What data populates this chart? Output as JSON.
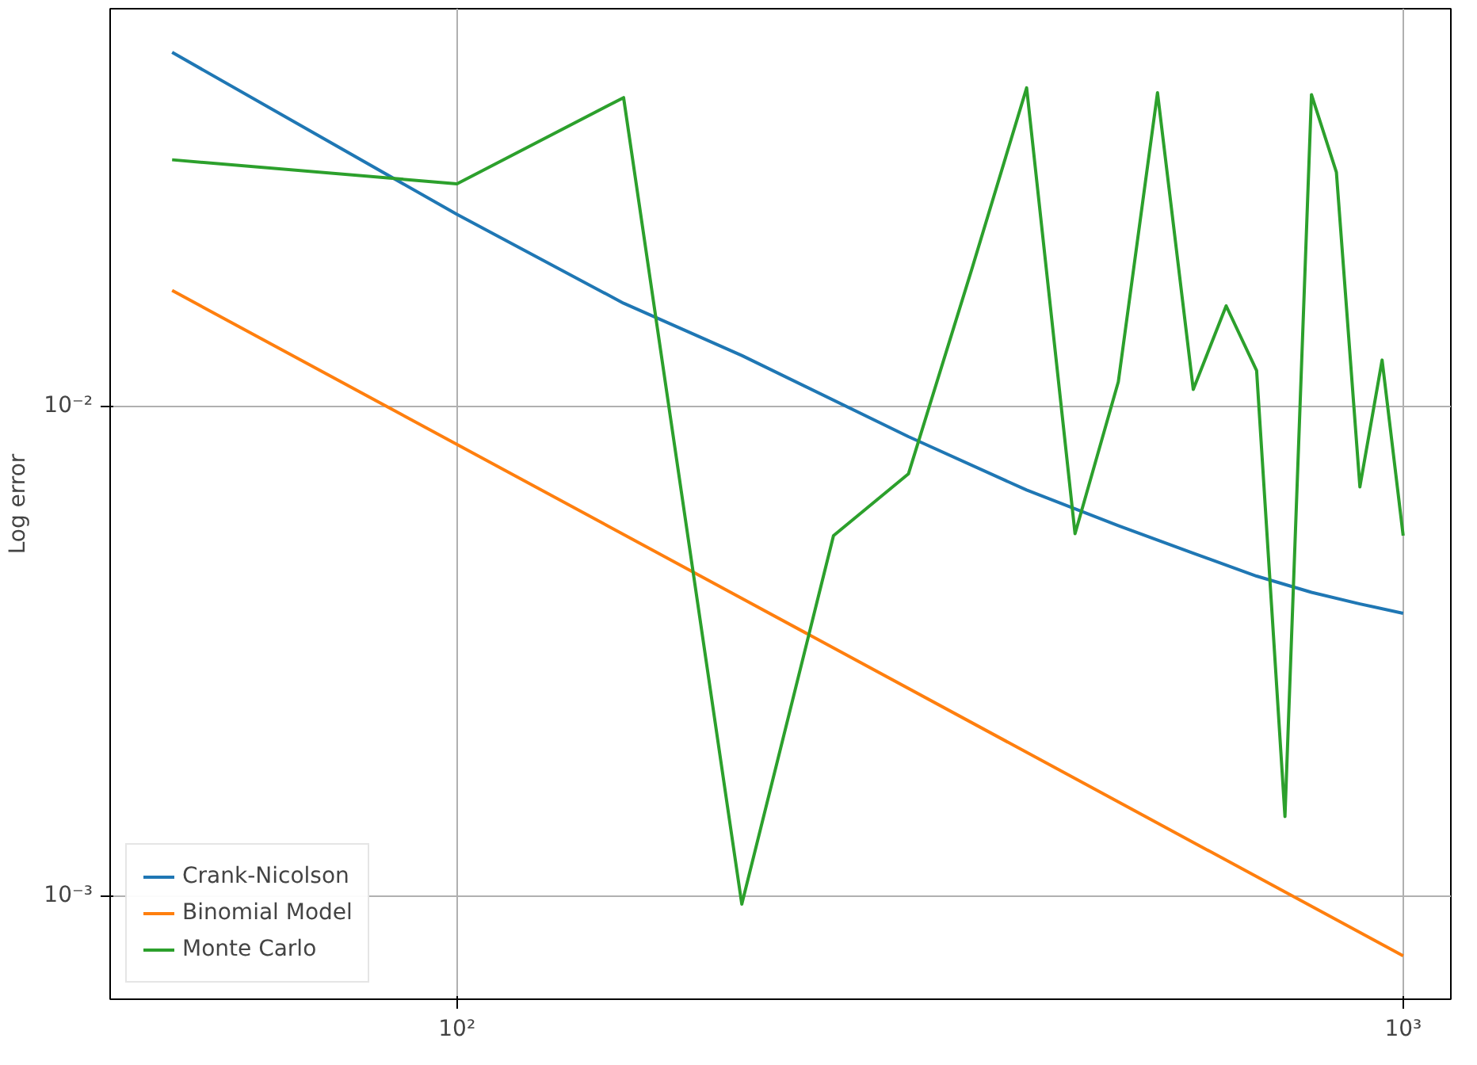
{
  "chart_data": {
    "type": "line",
    "ylabel": "Log error",
    "log": "xy",
    "grid": true,
    "legend": "bottom left",
    "xlim": [
      43,
      1123
    ],
    "ylim": [
      0.000614,
      0.0647
    ],
    "xticks": [
      {
        "value": 100,
        "label": "10²"
      },
      {
        "value": 1000,
        "label": "10³"
      }
    ],
    "yticks": [
      {
        "value": 0.001,
        "label": "10⁻³"
      },
      {
        "value": 0.01,
        "label": "10⁻²"
      }
    ],
    "series": [
      {
        "name": "Crank-Nicolson",
        "color": "#1f77b4",
        "x": [
          50,
          100,
          150,
          200,
          300,
          400,
          500,
          600,
          700,
          800,
          900,
          1000
        ],
        "values": [
          0.0527,
          0.0246,
          0.0162,
          0.01267,
          0.00865,
          0.00673,
          0.00569,
          0.005,
          0.00449,
          0.00416,
          0.00394,
          0.00377
        ]
      },
      {
        "name": "Binomial Model",
        "color": "#ff7f0e",
        "x": [
          50,
          1000
        ],
        "values": [
          0.0172,
          0.000753
        ]
      },
      {
        "name": "Monte Carlo",
        "color": "#2ca02c",
        "x": [
          50,
          100,
          150,
          200,
          250,
          300,
          350,
          400,
          450,
          500,
          550,
          600,
          650,
          700,
          750,
          800,
          850,
          900,
          950,
          1000
        ],
        "values": [
          0.0318,
          0.0284,
          0.0426,
          0.00096,
          0.00543,
          0.00726,
          0.019,
          0.0446,
          0.00548,
          0.0112,
          0.0436,
          0.0108,
          0.016,
          0.0118,
          0.00145,
          0.0432,
          0.03,
          0.00683,
          0.0124,
          0.00543
        ]
      }
    ]
  }
}
